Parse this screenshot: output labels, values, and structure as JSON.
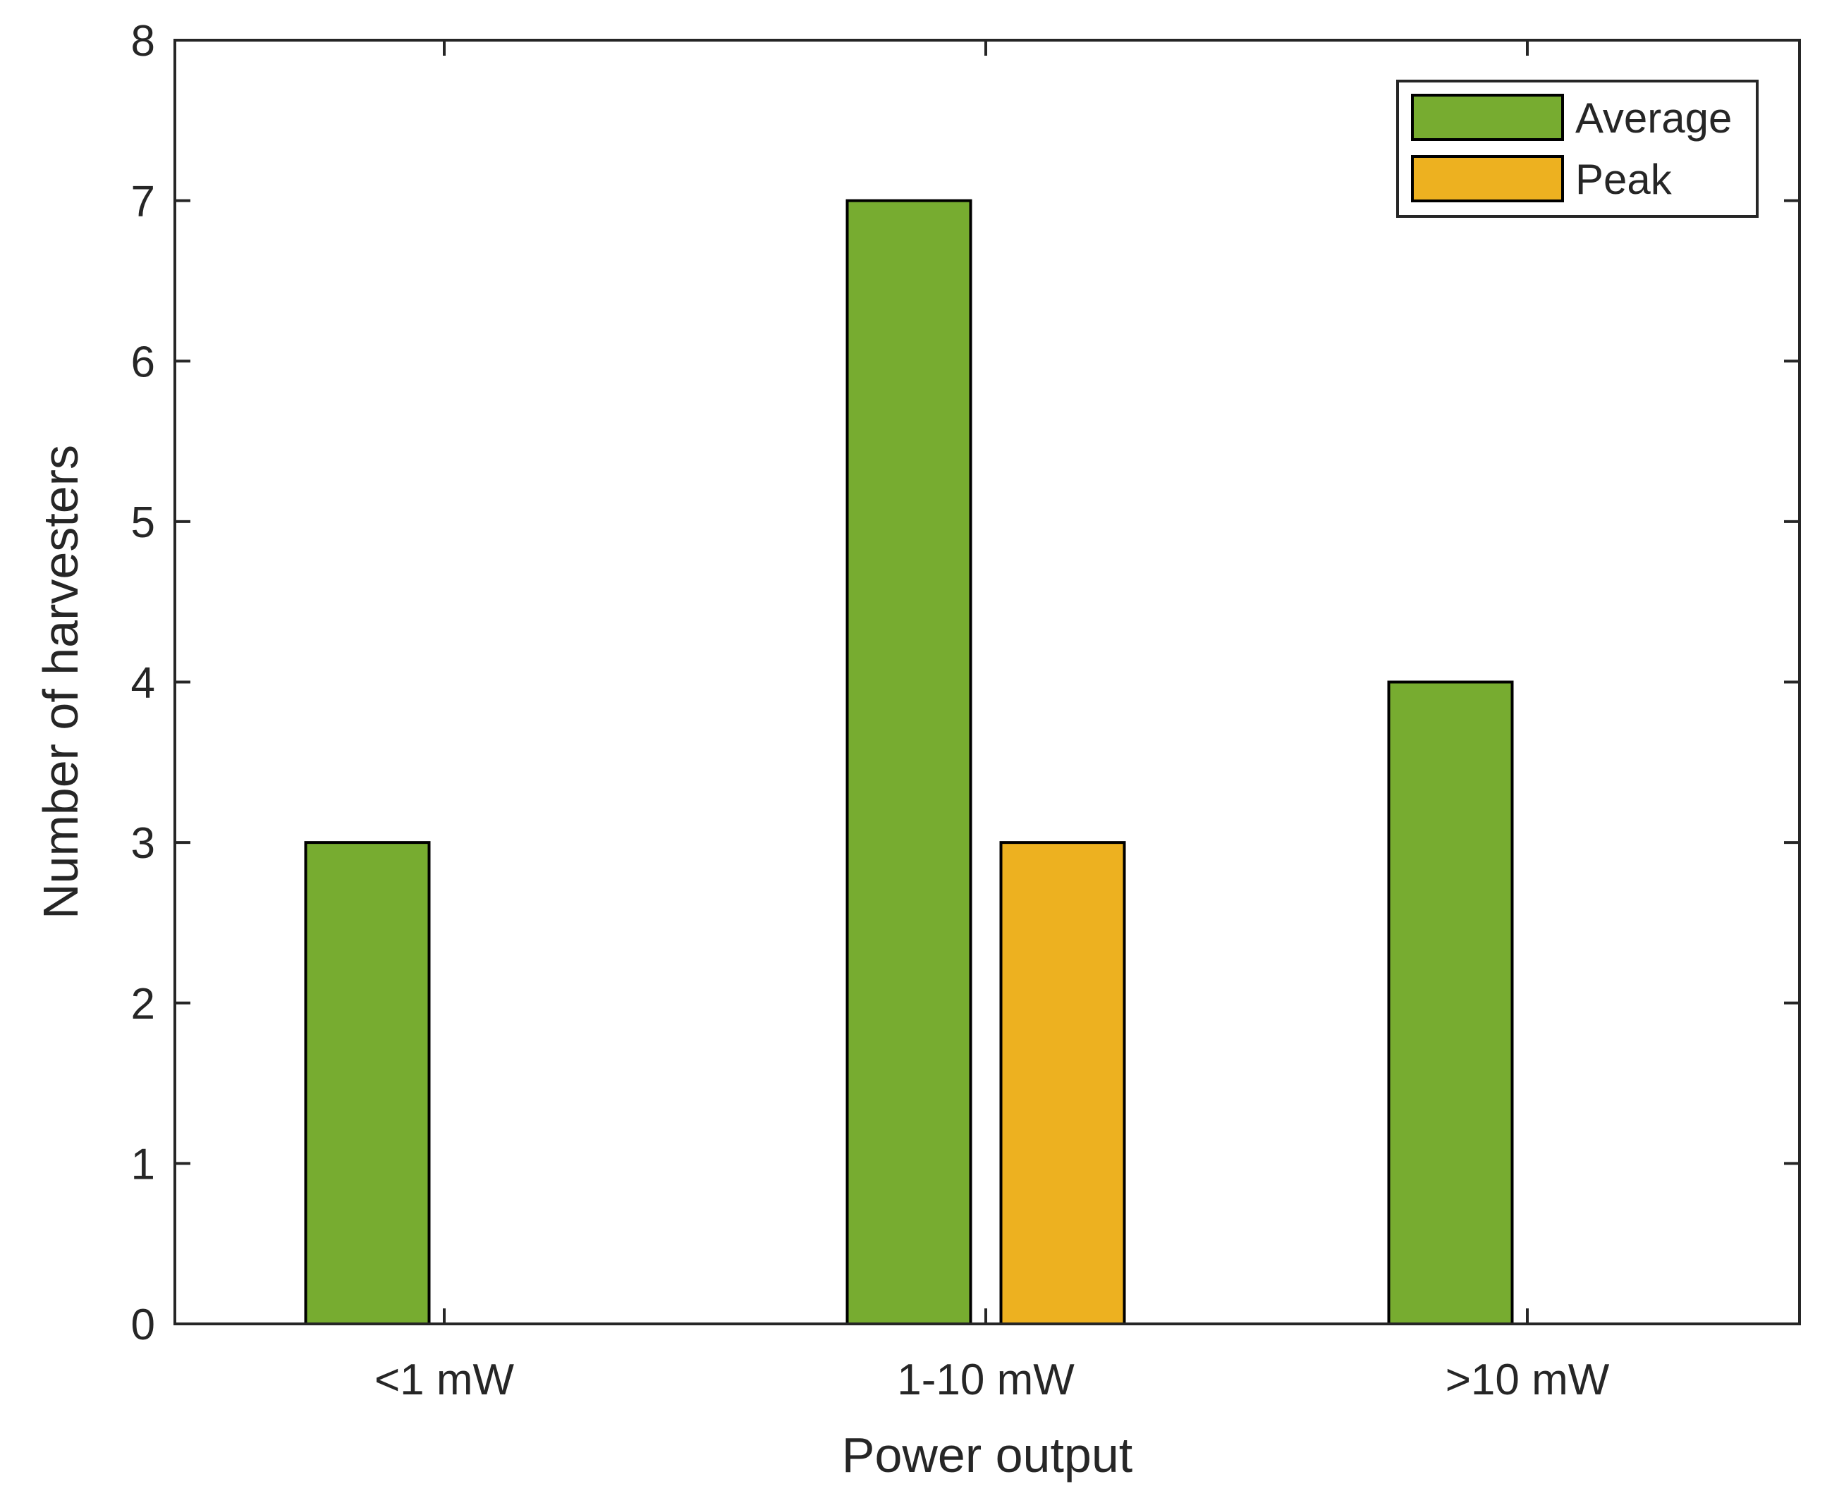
{
  "chart_data": {
    "type": "bar",
    "title": "",
    "xlabel": "Power output",
    "ylabel": "Number of harvesters",
    "categories": [
      "<1 mW",
      "1-10 mW",
      ">10 mW"
    ],
    "ylim": [
      0,
      8
    ],
    "yticks": [
      "0",
      "1",
      "2",
      "3",
      "4",
      "5",
      "6",
      "7",
      "8"
    ],
    "grid": false,
    "legend_position": "top-right",
    "series": [
      {
        "name": "Average",
        "color": "#77AC30",
        "values": [
          3,
          7,
          4
        ]
      },
      {
        "name": "Peak",
        "color": "#EDB120",
        "values": [
          0,
          3,
          0
        ]
      }
    ]
  }
}
